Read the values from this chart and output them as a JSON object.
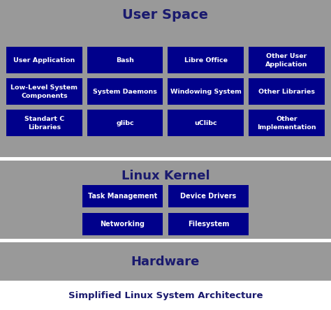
{
  "bg_color": "#999999",
  "box_color": "#00008B",
  "text_color_white": "#FFFFFF",
  "title_color": "#1a1a6e",
  "footer_bg": "#FFFFFF",
  "separator_color": "#FFFFFF",
  "user_space_label": "User Space",
  "kernel_label": "Linux Kernel",
  "hardware_label": "Hardware",
  "footer_label": "Simplified Linux System Architecture",
  "user_space_rows": [
    [
      "User Application",
      "Bash",
      "Libre Office",
      "Other User\nApplication"
    ],
    [
      "Low-Level System\nComponents",
      "System Daemons",
      "Windowing System",
      "Other Libraries"
    ],
    [
      "Standart C\nLibraries",
      "glibc",
      "uClibc",
      "Other\nImplementation"
    ]
  ],
  "kernel_rows": [
    [
      "Task Management",
      "Device Drivers"
    ],
    [
      "Networking",
      "Filesystem"
    ]
  ],
  "fig_w": 474,
  "fig_h": 444,
  "dpi": 100
}
